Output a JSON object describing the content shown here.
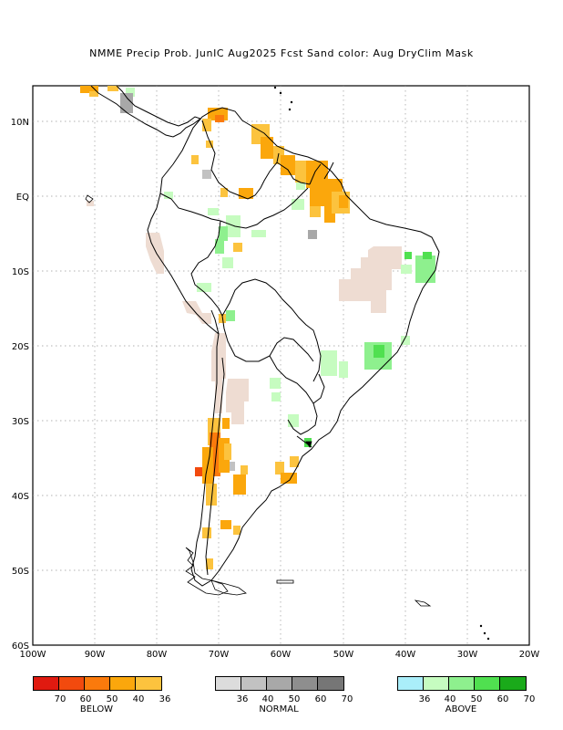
{
  "title": "NMME Precip Prob. JunIC  Aug2025 Fcst  Sand color: Aug DryClim Mask",
  "lat_labels": [
    "10N",
    "EQ",
    "10S",
    "20S",
    "30S",
    "40S",
    "50S",
    "60S"
  ],
  "lon_labels": [
    "100W",
    "90W",
    "80W",
    "70W",
    "60W",
    "50W",
    "40W",
    "30W",
    "20W"
  ],
  "legends": {
    "below": {
      "caption": "BELOW",
      "ticks": [
        "70",
        "60",
        "50",
        "40",
        "36"
      ],
      "colors": [
        "#e01a10",
        "#f24a0e",
        "#fb7a0c",
        "#fba70c",
        "#fcc33e"
      ]
    },
    "normal": {
      "caption": "NORMAL",
      "ticks": [
        "36",
        "40",
        "50",
        "60",
        "70"
      ],
      "colors": [
        "#dcdcdc",
        "#c2c2c2",
        "#a8a8a8",
        "#8e8e8e",
        "#767676"
      ]
    },
    "above": {
      "caption": "ABOVE",
      "ticks": [
        "36",
        "40",
        "50",
        "60",
        "70"
      ],
      "colors": [
        "#aaeefa",
        "#c6fcc0",
        "#8ef08e",
        "#50e050",
        "#1aaa1a"
      ]
    }
  },
  "colors": {
    "sand": "#eedcd2",
    "grid": "#999999",
    "coast": "#000000"
  }
}
